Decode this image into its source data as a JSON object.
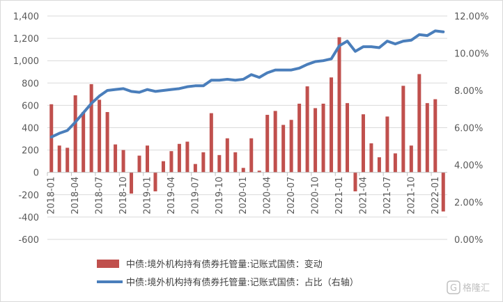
{
  "chart_data": {
    "type": "bar+line",
    "title": "",
    "x": [
      "2018-01",
      "2018-02",
      "2018-03",
      "2018-04",
      "2018-05",
      "2018-06",
      "2018-07",
      "2018-08",
      "2018-09",
      "2018-10",
      "2018-11",
      "2018-12",
      "2019-01",
      "2019-02",
      "2019-03",
      "2019-04",
      "2019-05",
      "2019-06",
      "2019-07",
      "2019-08",
      "2019-09",
      "2019-10",
      "2019-11",
      "2019-12",
      "2020-01",
      "2020-02",
      "2020-03",
      "2020-04",
      "2020-05",
      "2020-06",
      "2020-07",
      "2020-08",
      "2020-09",
      "2020-10",
      "2020-11",
      "2020-12",
      "2021-01",
      "2021-02",
      "2021-03",
      "2021-04",
      "2021-05",
      "2021-06",
      "2021-07",
      "2021-08",
      "2021-09",
      "2021-10",
      "2021-11",
      "2021-12",
      "2022-01",
      "2022-02"
    ],
    "x_tick_labels": [
      "2018-01",
      "2018-04",
      "2018-07",
      "2018-10",
      "2019-01",
      "2019-04",
      "2019-07",
      "2019-10",
      "2020-01",
      "2020-04",
      "2020-07",
      "2020-10",
      "2021-01",
      "2021-04",
      "2021-07",
      "2021-10",
      "2022-01"
    ],
    "left_axis": {
      "min": -600,
      "max": 1400,
      "step": 200,
      "tick_labels": [
        "-600",
        "-400",
        "-200",
        "0",
        "200",
        "400",
        "600",
        "800",
        "1,000",
        "1,200",
        "1,400"
      ]
    },
    "right_axis": {
      "min": 0,
      "max": 12,
      "step": 2,
      "tick_labels": [
        "0.00%",
        "2.00%",
        "4.00%",
        "6.00%",
        "8.00%",
        "10.00%",
        "12.00%"
      ]
    },
    "series": [
      {
        "name": "中债:境外机构持有债券托管量:记账式国债：变动",
        "type": "bar",
        "axis": "left",
        "color": "#c0504d",
        "values": [
          610,
          240,
          220,
          690,
          540,
          790,
          650,
          540,
          250,
          200,
          -190,
          150,
          240,
          -170,
          100,
          190,
          255,
          275,
          75,
          180,
          530,
          155,
          305,
          180,
          40,
          305,
          15,
          515,
          550,
          425,
          470,
          615,
          770,
          575,
          615,
          850,
          1210,
          620,
          -170,
          520,
          260,
          135,
          500,
          170,
          775,
          240,
          880,
          620,
          655,
          -350
        ]
      },
      {
        "name": "中债:境外机构持有债券托管量:记账式国债：占比（右轴）",
        "type": "line",
        "axis": "right",
        "color": "#4a7ebb",
        "values": [
          5.5,
          5.7,
          5.85,
          6.3,
          6.8,
          7.3,
          7.7,
          8.0,
          8.05,
          8.1,
          7.95,
          7.9,
          8.05,
          7.95,
          8.0,
          8.05,
          8.1,
          8.2,
          8.25,
          8.25,
          8.55,
          8.55,
          8.6,
          8.55,
          8.6,
          8.85,
          8.7,
          8.95,
          9.1,
          9.1,
          9.1,
          9.2,
          9.4,
          9.55,
          9.6,
          9.7,
          10.4,
          10.65,
          10.1,
          10.35,
          10.35,
          10.3,
          10.65,
          10.5,
          10.65,
          10.7,
          11.0,
          10.95,
          11.2,
          11.15
        ]
      }
    ],
    "legend_position": "bottom"
  },
  "watermark": {
    "text": "格隆汇",
    "logo": "G"
  }
}
